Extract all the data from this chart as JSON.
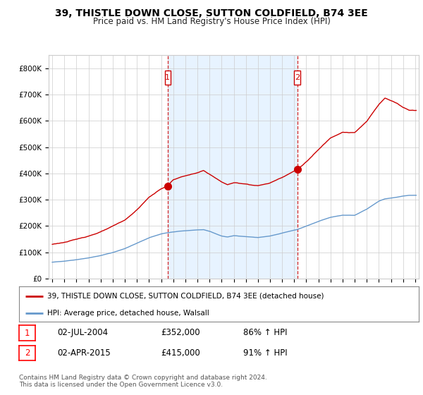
{
  "title": "39, THISTLE DOWN CLOSE, SUTTON COLDFIELD, B74 3EE",
  "subtitle": "Price paid vs. HM Land Registry's House Price Index (HPI)",
  "legend_line1": "39, THISTLE DOWN CLOSE, SUTTON COLDFIELD, B74 3EE (detached house)",
  "legend_line2": "HPI: Average price, detached house, Walsall",
  "sale1_date": "02-JUL-2004",
  "sale1_price": "£352,000",
  "sale1_hpi": "86% ↑ HPI",
  "sale2_date": "02-APR-2015",
  "sale2_price": "£415,000",
  "sale2_hpi": "91% ↑ HPI",
  "footnote": "Contains HM Land Registry data © Crown copyright and database right 2024.\nThis data is licensed under the Open Government Licence v3.0.",
  "ylim": [
    0,
    850000
  ],
  "yticks": [
    0,
    100000,
    200000,
    300000,
    400000,
    500000,
    600000,
    700000,
    800000
  ],
  "ytick_labels": [
    "£0",
    "£100K",
    "£200K",
    "£300K",
    "£400K",
    "£500K",
    "£600K",
    "£700K",
    "£800K"
  ],
  "red_color": "#cc0000",
  "blue_color": "#6699cc",
  "shade_color": "#ddeeff",
  "sale1_year": 2004.54,
  "sale1_y": 352000,
  "sale2_year": 2015.25,
  "sale2_y": 415000,
  "xlim_start": 1995.0,
  "xlim_end": 2025.3,
  "background_color": "#ffffff",
  "grid_color": "#cccccc"
}
